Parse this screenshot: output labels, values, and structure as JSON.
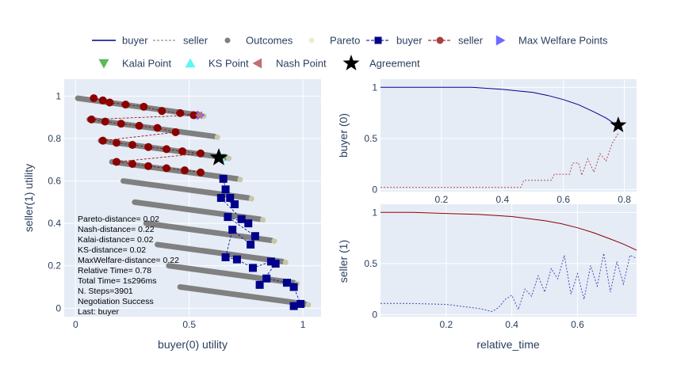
{
  "legend": {
    "row1": [
      {
        "label": "buyer",
        "kind": "line",
        "color": "#00008b",
        "dash": "solid"
      },
      {
        "label": "seller",
        "kind": "line",
        "color": "#a0a0a0",
        "dash": "dot"
      },
      {
        "label": "Outcomes",
        "kind": "dot",
        "color": "#808080"
      },
      {
        "label": "Pareto",
        "kind": "dot",
        "color": "#eeeed0"
      },
      {
        "label": "buyer",
        "kind": "square-line",
        "color": "#00008b",
        "dash": "dash"
      },
      {
        "label": "seller",
        "kind": "circle-line",
        "color": "#8b0000",
        "dash": "dash"
      },
      {
        "label": "Max Welfare Points",
        "kind": "tri-right",
        "color": "#6b6bff"
      }
    ],
    "row2": [
      {
        "label": "Kalai Point",
        "kind": "tri-down",
        "color": "#5cb85c"
      },
      {
        "label": "KS Point",
        "kind": "tri-up",
        "color": "#5ff5f5"
      },
      {
        "label": "Nash Point",
        "kind": "tri-left",
        "color": "#c07070"
      },
      {
        "label": "Agreement",
        "kind": "star",
        "color": "#000000"
      }
    ]
  },
  "annotation_lines": [
    "Pareto-distance= 0.02",
    "Nash-distance= 0.22",
    "Kalai-distance= 0.02",
    "KS-distance= 0.02",
    "MaxWelfare-distance= 0.22",
    "Relative Time= 0.78",
    "Total Time= 1s296ms",
    "N. Steps=3901",
    "Negotiation Success",
    "Last: buyer"
  ],
  "axes": {
    "left": {
      "xlabel": "buyer(0) utility",
      "ylabel": "seller(1) utility",
      "xticks": [
        "0",
        "0.5",
        "1"
      ],
      "yticks": [
        "0",
        "0.2",
        "0.4",
        "0.6",
        "0.8",
        "1"
      ]
    },
    "top_right": {
      "ylabel": "buyer (0)",
      "xticks": [
        "0.2",
        "0.4",
        "0.6",
        "0.8"
      ],
      "yticks": [
        "0",
        "0.5",
        "1"
      ]
    },
    "bottom_right": {
      "xlabel": "relative_time",
      "ylabel": "seller (1)",
      "xticks": [
        "0.2",
        "0.4",
        "0.6"
      ],
      "yticks": [
        "0",
        "0.5",
        "1"
      ]
    }
  },
  "chart_data": [
    {
      "type": "scatter",
      "title": "",
      "xlabel": "buyer(0) utility",
      "ylabel": "seller(1) utility",
      "xlim": [
        -0.05,
        1.08
      ],
      "ylim": [
        -0.04,
        1.08
      ],
      "outcome_bands": [
        {
          "x0": 0.01,
          "y0": 0.99,
          "x1": 0.55,
          "y1": 0.91
        },
        {
          "x0": 0.06,
          "y0": 0.89,
          "x1": 0.61,
          "y1": 0.81
        },
        {
          "x0": 0.11,
          "y0": 0.79,
          "x1": 0.66,
          "y1": 0.71
        },
        {
          "x0": 0.16,
          "y0": 0.69,
          "x1": 0.71,
          "y1": 0.61
        },
        {
          "x0": 0.21,
          "y0": 0.6,
          "x1": 0.76,
          "y1": 0.52
        },
        {
          "x0": 0.26,
          "y0": 0.5,
          "x1": 0.81,
          "y1": 0.42
        },
        {
          "x0": 0.31,
          "y0": 0.4,
          "x1": 0.86,
          "y1": 0.32
        },
        {
          "x0": 0.36,
          "y0": 0.3,
          "x1": 0.91,
          "y1": 0.22
        },
        {
          "x0": 0.41,
          "y0": 0.2,
          "x1": 0.96,
          "y1": 0.12
        },
        {
          "x0": 0.46,
          "y0": 0.1,
          "x1": 1.01,
          "y1": 0.02
        }
      ],
      "seller_offers": [
        {
          "x": 0.08,
          "y": 0.99
        },
        {
          "x": 0.12,
          "y": 0.98
        },
        {
          "x": 0.15,
          "y": 0.97
        },
        {
          "x": 0.22,
          "y": 0.96
        },
        {
          "x": 0.3,
          "y": 0.95
        },
        {
          "x": 0.38,
          "y": 0.93
        },
        {
          "x": 0.46,
          "y": 0.92
        },
        {
          "x": 0.52,
          "y": 0.91
        },
        {
          "x": 0.07,
          "y": 0.89
        },
        {
          "x": 0.13,
          "y": 0.88
        },
        {
          "x": 0.2,
          "y": 0.87
        },
        {
          "x": 0.28,
          "y": 0.86
        },
        {
          "x": 0.36,
          "y": 0.85
        },
        {
          "x": 0.44,
          "y": 0.83
        },
        {
          "x": 0.12,
          "y": 0.79
        },
        {
          "x": 0.18,
          "y": 0.78
        },
        {
          "x": 0.25,
          "y": 0.77
        },
        {
          "x": 0.32,
          "y": 0.76
        },
        {
          "x": 0.4,
          "y": 0.75
        },
        {
          "x": 0.47,
          "y": 0.74
        },
        {
          "x": 0.55,
          "y": 0.73
        },
        {
          "x": 0.18,
          "y": 0.69
        },
        {
          "x": 0.25,
          "y": 0.68
        },
        {
          "x": 0.32,
          "y": 0.67
        },
        {
          "x": 0.4,
          "y": 0.66
        },
        {
          "x": 0.48,
          "y": 0.65
        },
        {
          "x": 0.55,
          "y": 0.64
        }
      ],
      "buyer_offers": [
        {
          "x": 0.65,
          "y": 0.61
        },
        {
          "x": 0.66,
          "y": 0.56
        },
        {
          "x": 0.68,
          "y": 0.52
        },
        {
          "x": 0.7,
          "y": 0.49
        },
        {
          "x": 0.64,
          "y": 0.52
        },
        {
          "x": 0.73,
          "y": 0.42
        },
        {
          "x": 0.76,
          "y": 0.4
        },
        {
          "x": 0.67,
          "y": 0.43
        },
        {
          "x": 0.79,
          "y": 0.34
        },
        {
          "x": 0.77,
          "y": 0.3
        },
        {
          "x": 0.69,
          "y": 0.37
        },
        {
          "x": 0.66,
          "y": 0.24
        },
        {
          "x": 0.71,
          "y": 0.23
        },
        {
          "x": 0.78,
          "y": 0.19
        },
        {
          "x": 0.86,
          "y": 0.22
        },
        {
          "x": 0.88,
          "y": 0.21
        },
        {
          "x": 0.81,
          "y": 0.11
        },
        {
          "x": 0.84,
          "y": 0.14
        },
        {
          "x": 0.93,
          "y": 0.12
        },
        {
          "x": 0.96,
          "y": 0.1
        },
        {
          "x": 0.99,
          "y": 0.02
        },
        {
          "x": 0.96,
          "y": 0.01
        }
      ],
      "agreement": {
        "x": 0.63,
        "y": 0.71
      },
      "kalai_point": {
        "x": 0.63,
        "y": 0.71
      },
      "ks_point": {
        "x": 0.63,
        "y": 0.71
      },
      "nash_point": {
        "x": 0.55,
        "y": 0.91
      },
      "max_welfare_point": {
        "x": 0.55,
        "y": 0.91
      }
    },
    {
      "type": "line",
      "title": "",
      "xlabel": "",
      "ylabel": "buyer (0)",
      "xlim": [
        0,
        0.84
      ],
      "ylim": [
        -0.02,
        1.08
      ],
      "series": [
        {
          "name": "buyer",
          "x": [
            0,
            0.1,
            0.2,
            0.3,
            0.4,
            0.5,
            0.55,
            0.6,
            0.65,
            0.7,
            0.74,
            0.78
          ],
          "y": [
            1,
            1,
            1,
            1,
            0.98,
            0.95,
            0.92,
            0.88,
            0.83,
            0.76,
            0.7,
            0.62
          ]
        },
        {
          "name": "seller",
          "x": [
            0,
            0.1,
            0.2,
            0.3,
            0.46,
            0.47,
            0.56,
            0.57,
            0.62,
            0.63,
            0.65,
            0.66,
            0.68,
            0.7,
            0.72,
            0.74,
            0.76,
            0.78
          ],
          "y": [
            0.02,
            0.02,
            0.02,
            0.02,
            0.02,
            0.09,
            0.09,
            0.15,
            0.15,
            0.26,
            0.26,
            0.14,
            0.3,
            0.17,
            0.35,
            0.28,
            0.45,
            0.55
          ]
        }
      ],
      "agreement": {
        "x": 0.78,
        "y": 0.63
      }
    },
    {
      "type": "line",
      "title": "",
      "xlabel": "relative_time",
      "ylabel": "seller (1)",
      "xlim": [
        0,
        0.78
      ],
      "ylim": [
        -0.02,
        1.08
      ],
      "series": [
        {
          "name": "seller",
          "x": [
            0,
            0.1,
            0.2,
            0.3,
            0.4,
            0.5,
            0.55,
            0.6,
            0.65,
            0.7,
            0.74,
            0.78
          ],
          "y": [
            1,
            1,
            0.99,
            0.98,
            0.96,
            0.92,
            0.89,
            0.85,
            0.8,
            0.74,
            0.69,
            0.63
          ]
        },
        {
          "name": "buyer",
          "x": [
            0,
            0.08,
            0.2,
            0.3,
            0.34,
            0.36,
            0.38,
            0.4,
            0.42,
            0.44,
            0.46,
            0.48,
            0.5,
            0.52,
            0.54,
            0.56,
            0.58,
            0.6,
            0.62,
            0.64,
            0.66,
            0.68,
            0.7,
            0.72,
            0.74,
            0.76,
            0.78
          ],
          "y": [
            0.11,
            0.11,
            0.1,
            0.06,
            0.03,
            0.07,
            0.15,
            0.19,
            0.05,
            0.25,
            0.18,
            0.38,
            0.22,
            0.45,
            0.35,
            0.58,
            0.2,
            0.4,
            0.15,
            0.48,
            0.28,
            0.6,
            0.22,
            0.52,
            0.3,
            0.58,
            0.55
          ]
        }
      ]
    }
  ]
}
